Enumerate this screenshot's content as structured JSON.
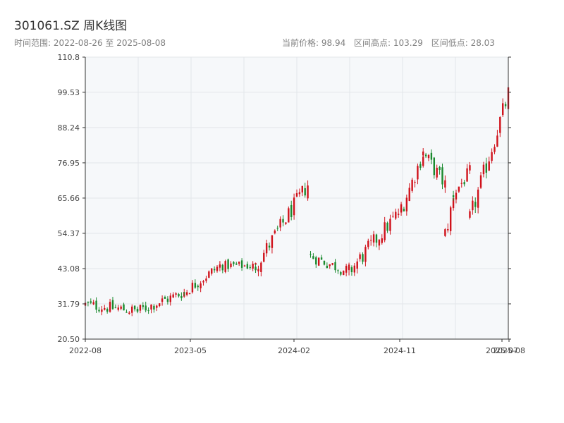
{
  "header": {
    "title": "301061.SZ 周K线图",
    "range_label": "时间范围: 2022-08-26 至 2025-08-08",
    "current_price": "当前价格: 98.94",
    "high": "区间高点: 103.29",
    "low": "区间低点: 28.03"
  },
  "colors": {
    "up": "#d0121b",
    "down": "#1a8a2e",
    "plot_bg": "#f6f8fa",
    "grid": "#e3e6ea",
    "axis": "#333333"
  },
  "chart_data": {
    "type": "candlestick",
    "x_ticks": [
      "2022-08",
      "2023-05",
      "2024-02",
      "2024-11",
      "2025-07",
      "2025-08"
    ],
    "y_ticks": [
      "20.50",
      "31.79",
      "43.08",
      "54.37",
      "65.66",
      "76.95",
      "88.24",
      "99.53",
      "110.8"
    ],
    "ylim": [
      20.5,
      110.8
    ],
    "xlim": [
      "2022-08-26",
      "2025-08-08"
    ],
    "segments": [
      {
        "start": "2022-08-26",
        "end": "2023-01-06",
        "from": 31.5,
        "to": 29.5,
        "amp": 2.5
      },
      {
        "start": "2023-01-06",
        "end": "2023-05-05",
        "from": 29.5,
        "to": 35.5,
        "amp": 2.5
      },
      {
        "start": "2023-05-05",
        "end": "2023-08-04",
        "from": 35.5,
        "to": 44.0,
        "amp": 2.5
      },
      {
        "start": "2023-08-04",
        "end": "2023-11-03",
        "from": 44.0,
        "to": 44.0,
        "amp": 2.0
      },
      {
        "start": "2023-11-03",
        "end": "2024-03-15",
        "from": 44.0,
        "to": 70.0,
        "amp": 3.5
      },
      {
        "start": "2024-03-22",
        "end": "2024-06-28",
        "from": 47.0,
        "to": 42.0,
        "amp": 2.5
      },
      {
        "start": "2024-06-28",
        "end": "2024-11-08",
        "from": 42.0,
        "to": 62.0,
        "amp": 3.5
      },
      {
        "start": "2024-11-08",
        "end": "2025-01-03",
        "from": 62.0,
        "to": 80.0,
        "amp": 3.5
      },
      {
        "start": "2025-01-03",
        "end": "2025-02-28",
        "from": 80.0,
        "to": 70.0,
        "amp": 3.5
      },
      {
        "start": "2025-02-28",
        "end": "2025-03-21",
        "from": 54.0,
        "to": 65.0,
        "amp": 4.0
      },
      {
        "start": "2025-03-21",
        "end": "2025-05-02",
        "from": 67.0,
        "to": 74.0,
        "amp": 3.0
      },
      {
        "start": "2025-05-02",
        "end": "2025-08-08",
        "from": 59.0,
        "to": 98.94,
        "amp": 4.0
      }
    ]
  }
}
